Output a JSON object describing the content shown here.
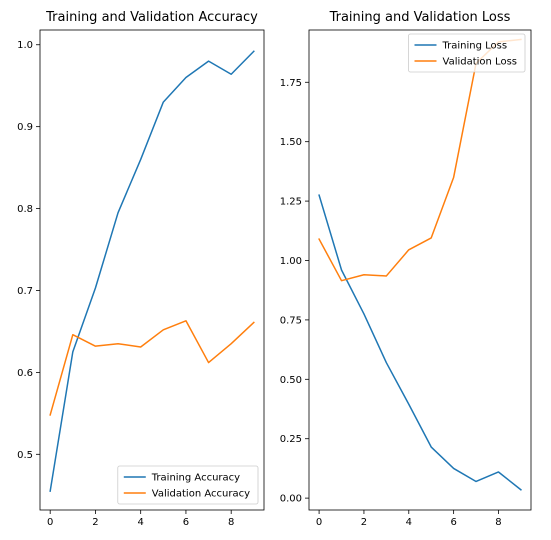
{
  "colors": {
    "series1": "#1f77b4",
    "series2": "#ff7f0e"
  },
  "chart_data": [
    {
      "type": "line",
      "title": "Training and Validation Accuracy",
      "xlabel": "",
      "ylabel": "",
      "xlim": [
        -0.45,
        9.45
      ],
      "ylim": [
        0.432,
        1.018
      ],
      "xticks": [
        0,
        2,
        4,
        6,
        8
      ],
      "yticks": [
        0.5,
        0.6,
        0.7,
        0.8,
        0.9,
        1.0
      ],
      "ytick_labels": [
        "0.5",
        "0.6",
        "0.7",
        "0.8",
        "0.9",
        "1.0"
      ],
      "x": [
        0,
        1,
        2,
        3,
        4,
        5,
        6,
        7,
        8,
        9
      ],
      "legend_position": "lower right",
      "series": [
        {
          "name": "Training Accuracy",
          "values": [
            0.455,
            0.625,
            0.703,
            0.795,
            0.86,
            0.93,
            0.96,
            0.98,
            0.964,
            0.992
          ]
        },
        {
          "name": "Validation Accuracy",
          "values": [
            0.548,
            0.646,
            0.632,
            0.635,
            0.631,
            0.652,
            0.663,
            0.612,
            0.635,
            0.661
          ]
        }
      ]
    },
    {
      "type": "line",
      "title": "Training and Validation Loss",
      "xlabel": "",
      "ylabel": "",
      "xlim": [
        -0.45,
        9.45
      ],
      "ylim": [
        -0.05,
        1.97
      ],
      "xticks": [
        0,
        2,
        4,
        6,
        8
      ],
      "yticks": [
        0.0,
        0.25,
        0.5,
        0.75,
        1.0,
        1.25,
        1.5,
        1.75
      ],
      "ytick_labels": [
        "0.00",
        "0.25",
        "0.50",
        "0.75",
        "1.00",
        "1.25",
        "1.50",
        "1.75"
      ],
      "x": [
        0,
        1,
        2,
        3,
        4,
        5,
        6,
        7,
        8,
        9
      ],
      "legend_position": "upper right",
      "series": [
        {
          "name": "Training Loss",
          "values": [
            1.275,
            0.96,
            0.775,
            0.57,
            0.395,
            0.215,
            0.125,
            0.07,
            0.11,
            0.035
          ]
        },
        {
          "name": "Validation Loss",
          "values": [
            1.09,
            0.915,
            0.94,
            0.935,
            1.045,
            1.095,
            1.35,
            1.83,
            1.92,
            1.93
          ]
        }
      ]
    }
  ]
}
